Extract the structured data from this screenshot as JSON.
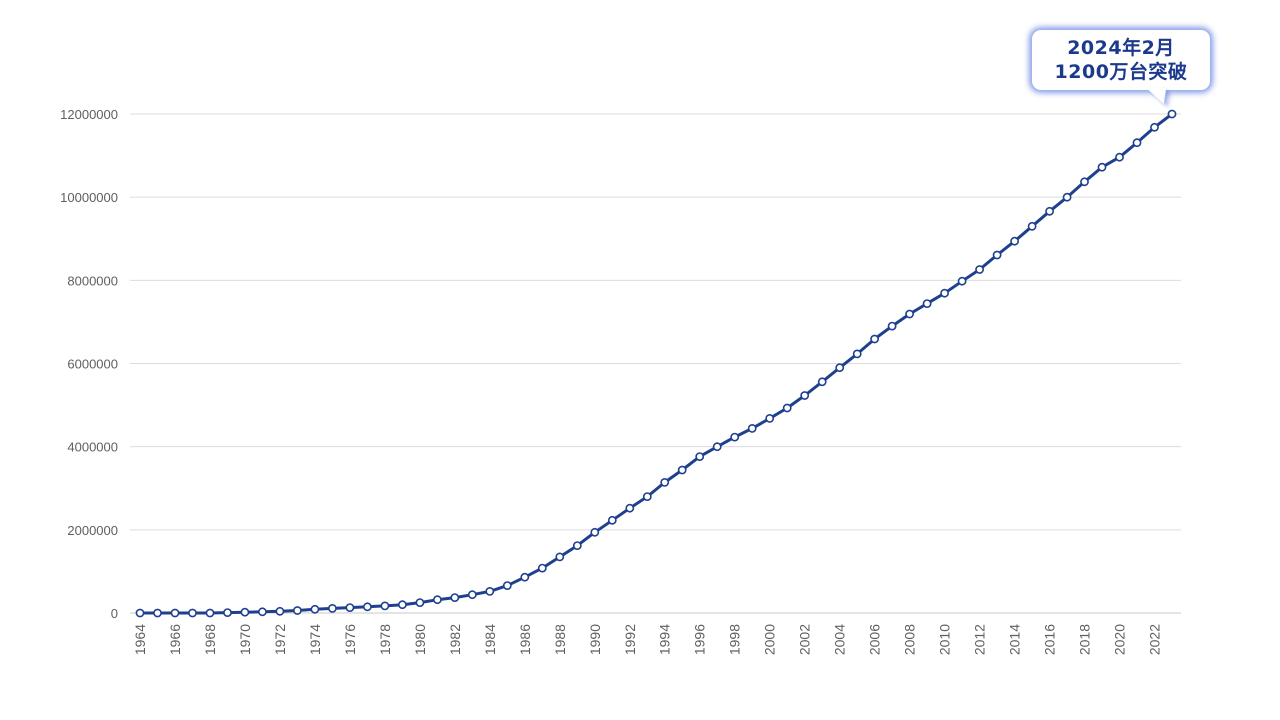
{
  "chart_data": {
    "type": "line",
    "title": "",
    "xlabel": "",
    "ylabel": "",
    "x": [
      1964,
      1965,
      1966,
      1967,
      1968,
      1969,
      1970,
      1971,
      1972,
      1973,
      1974,
      1975,
      1976,
      1977,
      1978,
      1979,
      1980,
      1981,
      1982,
      1983,
      1984,
      1985,
      1986,
      1987,
      1988,
      1989,
      1990,
      1991,
      1992,
      1993,
      1994,
      1995,
      1996,
      1997,
      1998,
      1999,
      2000,
      2001,
      2002,
      2003,
      2004,
      2005,
      2006,
      2007,
      2008,
      2009,
      2010,
      2011,
      2012,
      2013,
      2014,
      2015,
      2016,
      2017,
      2018,
      2019,
      2020,
      2021,
      2022,
      2023
    ],
    "series": [
      {
        "name": "",
        "color": "#1f3f8f",
        "values": [
          0,
          0,
          0,
          0,
          0,
          10000,
          20000,
          30000,
          40000,
          60000,
          90000,
          110000,
          130000,
          150000,
          170000,
          200000,
          250000,
          320000,
          370000,
          440000,
          520000,
          660000,
          860000,
          1080000,
          1350000,
          1620000,
          1940000,
          2230000,
          2520000,
          2800000,
          3140000,
          3440000,
          3760000,
          4000000,
          4230000,
          4440000,
          4680000,
          4930000,
          5230000,
          5560000,
          5900000,
          6230000,
          6590000,
          6900000,
          7190000,
          7440000,
          7690000,
          7980000,
          8260000,
          8610000,
          8940000,
          9300000,
          9660000,
          10000000,
          10370000,
          10720000,
          10960000,
          11310000,
          11680000,
          12000000
        ]
      }
    ],
    "ylim": [
      0,
      12000000
    ],
    "yticks": [
      0,
      2000000,
      4000000,
      6000000,
      8000000,
      10000000,
      12000000
    ],
    "xticks": [
      1964,
      1966,
      1968,
      1970,
      1972,
      1974,
      1976,
      1978,
      1980,
      1982,
      1984,
      1986,
      1988,
      1990,
      1992,
      1994,
      1996,
      1998,
      2000,
      2002,
      2004,
      2006,
      2008,
      2010,
      2012,
      2014,
      2016,
      2018,
      2020,
      2022
    ],
    "grid": true,
    "legend": "none",
    "annotation": {
      "line1": "2024年2月",
      "line2": "1200万台突破"
    }
  }
}
